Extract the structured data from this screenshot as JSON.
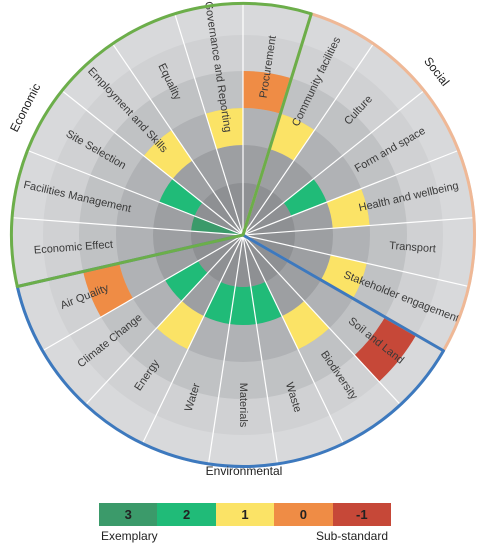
{
  "chart_data": {
    "type": "radial-heatmap",
    "sections": [
      {
        "name": "Economic",
        "color": "#6cae4a"
      },
      {
        "name": "Social",
        "color": "#efb896"
      },
      {
        "name": "Environmental",
        "color": "#3d79be"
      }
    ],
    "categories": [
      {
        "label": "Procurement",
        "section": "Economic",
        "score": 0
      },
      {
        "label": "Community facilities",
        "section": "Social",
        "score": 1
      },
      {
        "label": "Culture",
        "section": "Social",
        "score": null
      },
      {
        "label": "Form and space",
        "section": "Social",
        "score": 2
      },
      {
        "label": "Health and wellbeing",
        "section": "Social",
        "score": 1
      },
      {
        "label": "Transport",
        "section": "Social",
        "score": null
      },
      {
        "label": "Stakeholder engagement",
        "section": "Social",
        "score": 1
      },
      {
        "label": "Soil and Land",
        "section": "Environmental",
        "score": -1
      },
      {
        "label": "Biodiversity",
        "section": "Environmental",
        "score": 1
      },
      {
        "label": "Waste",
        "section": "Environmental",
        "score": 2
      },
      {
        "label": "Materials",
        "section": "Environmental",
        "score": 2
      },
      {
        "label": "Water",
        "section": "Environmental",
        "score": 2
      },
      {
        "label": "Energy",
        "section": "Environmental",
        "score": 1
      },
      {
        "label": "Climate Change",
        "section": "Environmental",
        "score": 2
      },
      {
        "label": "Air Quality",
        "section": "Environmental",
        "score": 0
      },
      {
        "label": "Economic Effect",
        "section": "Economic",
        "score": null
      },
      {
        "label": "Facilities Management",
        "section": "Economic",
        "score": 3
      },
      {
        "label": "Site Selection",
        "section": "Economic",
        "score": 2
      },
      {
        "label": "Employment and Skills",
        "section": "Economic",
        "score": 1
      },
      {
        "label": "Equality",
        "section": "Economic",
        "score": null
      },
      {
        "label": "Governance and Reporting",
        "section": "Economic",
        "score": 1
      }
    ],
    "legend": {
      "items": [
        {
          "value": "3",
          "color": "#3b9a6a"
        },
        {
          "value": "2",
          "color": "#20bb78"
        },
        {
          "value": "1",
          "color": "#fbe366"
        },
        {
          "value": "0",
          "color": "#ef8c45"
        },
        {
          "value": "-1",
          "color": "#c64838"
        }
      ],
      "low_label": "Exemplary",
      "high_label": "Sub-standard"
    },
    "background_ring_colors": [
      "#9d9fa2",
      "#b0b2b5",
      "#c0c2c4",
      "#d0d1d3"
    ],
    "rim_color": "#d8d9db",
    "spoke_color": "#ffffff"
  }
}
